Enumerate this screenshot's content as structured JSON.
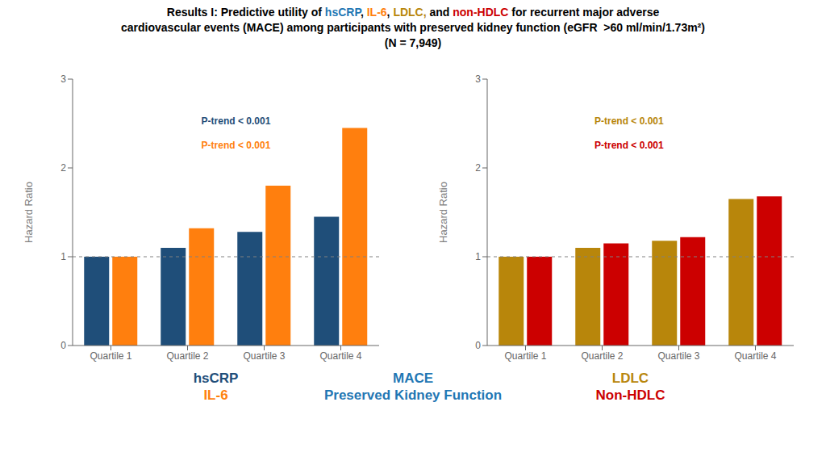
{
  "title": [
    {
      "text": "Results I: Predictive utility of ",
      "color": "black"
    },
    {
      "text": "hsCRP",
      "color": "#1F77B4"
    },
    {
      "text": ", ",
      "color": "black"
    },
    {
      "text": "IL-6",
      "color": "#FF7F0E"
    },
    {
      "text": ", ",
      "color": "black"
    },
    {
      "text": "LDLC,",
      "color": "#B8860B"
    },
    {
      "text": " and ",
      "color": "black"
    },
    {
      "text": "non-HDLC",
      "color": "#CC0000"
    },
    {
      "text": " for recurrent major adverse",
      "color": "black"
    }
  ],
  "subtitle": [
    "cardiovascular events (MACE) among participants with preserved kidney function (eGFR  >60 ml/min/1.73m²)",
    "(N = 7,949)"
  ],
  "annotations": [
    {
      "text": "MACE",
      "color": "#1F77B4"
    },
    {
      "text": "Preserved Kidney Function",
      "color": "#1F77B4"
    }
  ],
  "chart_data": [
    {
      "type": "bar",
      "categories": [
        "Quartile 1",
        "Quartile 2",
        "Quartile 3",
        "Quartile 4"
      ],
      "series": [
        {
          "name": "hsCRP",
          "color": "#1F4E79",
          "values": [
            1.0,
            1.1,
            1.28,
            1.45
          ]
        },
        {
          "name": "IL-6",
          "color": "#FF7F0E",
          "values": [
            1.0,
            1.32,
            1.8,
            2.45
          ]
        }
      ],
      "ylabel": "Hazard Ratio",
      "ylim": [
        0,
        3
      ],
      "yticks": [
        0,
        1,
        2,
        3
      ],
      "reference_line": 1,
      "grid": false,
      "legend": "bottom",
      "annotations": [
        {
          "text": "P-trend < 0.001",
          "color": "#1F4E79"
        },
        {
          "text": "P-trend < 0.001",
          "color": "#FF7F0E"
        }
      ]
    },
    {
      "type": "bar",
      "categories": [
        "Quartile 1",
        "Quartile 2",
        "Quartile 3",
        "Quartile 4"
      ],
      "series": [
        {
          "name": "LDLC",
          "color": "#B8860B",
          "values": [
            1.0,
            1.1,
            1.18,
            1.65
          ]
        },
        {
          "name": "Non-HDLC",
          "color": "#CC0000",
          "values": [
            1.0,
            1.15,
            1.22,
            1.68
          ]
        }
      ],
      "ylabel": "Hazard Ratio",
      "ylim": [
        0,
        3
      ],
      "yticks": [
        0,
        1,
        2,
        3
      ],
      "reference_line": 1,
      "grid": false,
      "legend": "bottom",
      "annotations": [
        {
          "text": "P-trend < 0.001",
          "color": "#B8860B"
        },
        {
          "text": "P-trend < 0.001",
          "color": "#CC0000"
        }
      ]
    }
  ]
}
